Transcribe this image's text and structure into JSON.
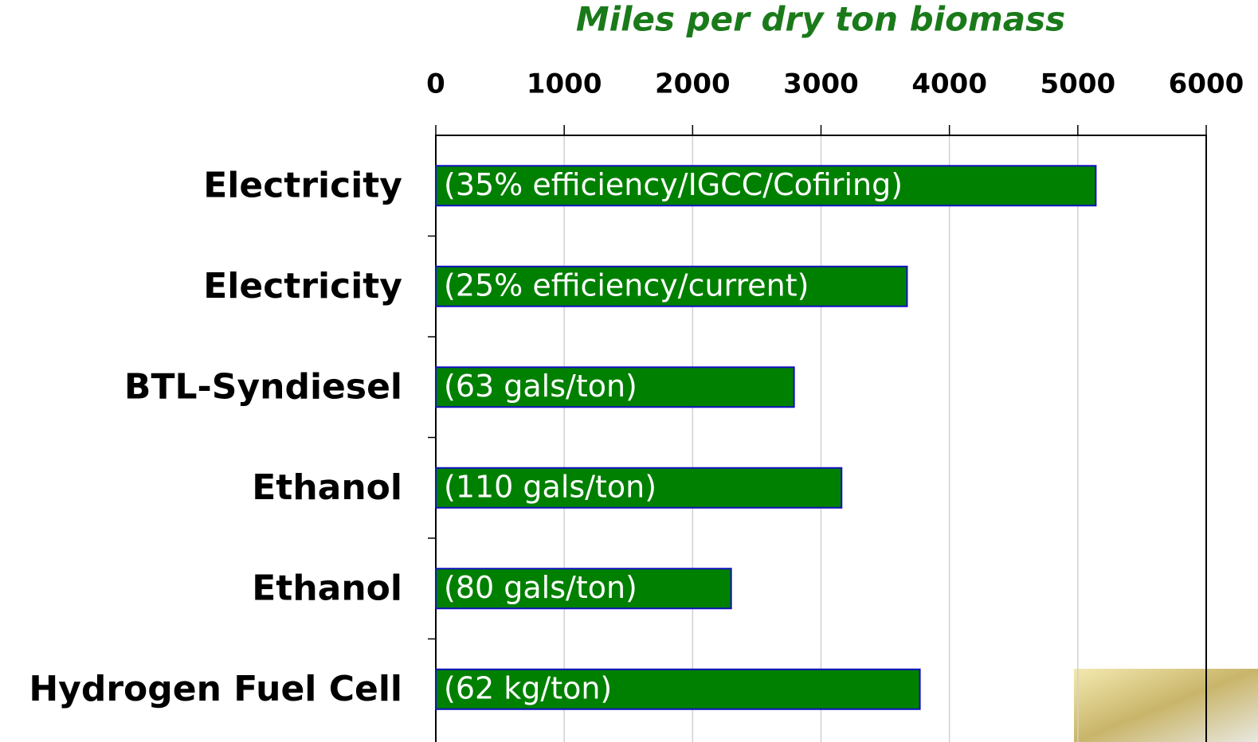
{
  "chart_data": {
    "type": "barh",
    "title": "Miles per dry ton biomass",
    "categories": [
      "Electricity",
      "Electricity",
      "BTL-Syndiesel",
      "Ethanol",
      "Ethanol",
      "Hydrogen Fuel Cell"
    ],
    "values": [
      5140,
      3670,
      2790,
      3160,
      2300,
      3770
    ],
    "annotations": [
      "(35% efficiency/IGCC/Cofiring)",
      "(25% efficiency/current)",
      "(63 gals/ton)",
      "(110 gals/ton)",
      "(80 gals/ton)",
      "(62 kg/ton)"
    ],
    "color": "#008000",
    "xlim": [
      0,
      6000
    ],
    "xticks": [
      0,
      1000,
      2000,
      3000,
      4000,
      5000,
      6000
    ],
    "grid": true
  }
}
